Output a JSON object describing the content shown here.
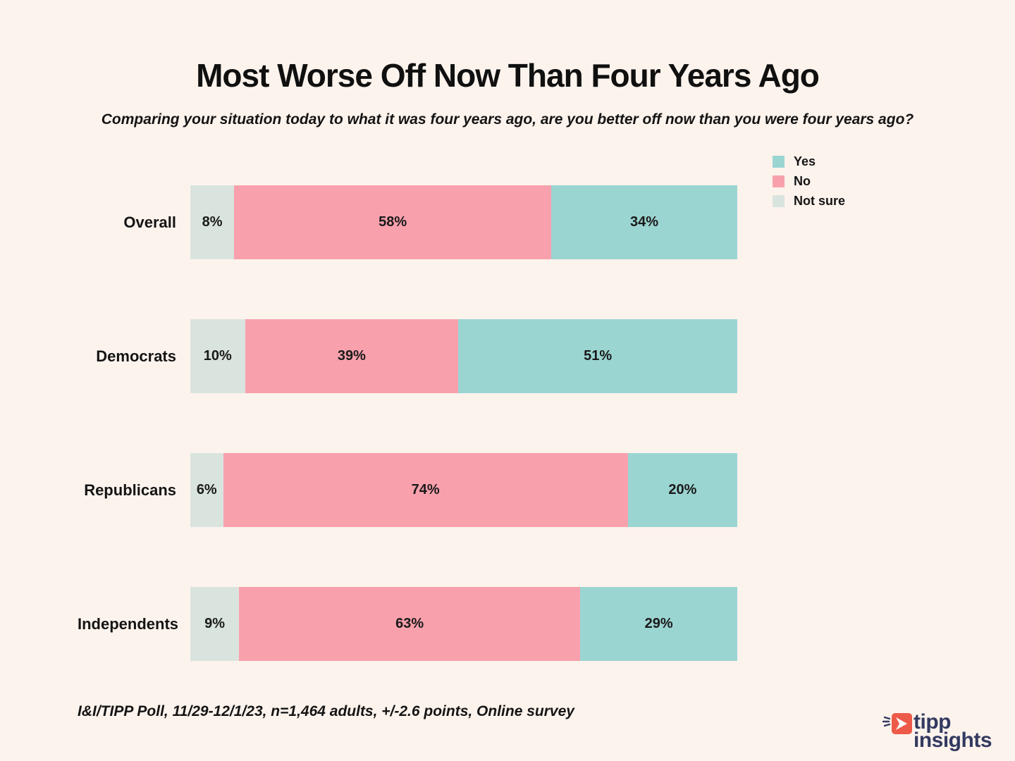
{
  "title": "Most Worse Off Now Than Four Years Ago",
  "subtitle": "Comparing your situation today to what it was four years ago, are you better off now than you were four years ago?",
  "footnote": "I&I/TIPP Poll, 11/29-12/1/23, n=1,464 adults, +/-2.6 points, Online survey",
  "colors": {
    "background": "#fdf3ed",
    "yes": "#9bd5d2",
    "no": "#f8a1ad",
    "not_sure": "#dae4de",
    "text": "#141414",
    "logo_navy": "#333a60",
    "logo_coral": "#ee5a4a"
  },
  "logo": {
    "line1": "tipp",
    "line2": "insights"
  },
  "chart_data": {
    "type": "bar",
    "orientation": "horizontal",
    "stacked": true,
    "grid": false,
    "xlim": [
      0,
      100
    ],
    "value_suffix": "%",
    "legend_position": "top-right",
    "title": "Most Worse Off Now Than Four Years Ago",
    "categories": [
      "Overall",
      "Democrats",
      "Republicans",
      "Independents"
    ],
    "segment_order": [
      "Not sure",
      "No",
      "Yes"
    ],
    "series": [
      {
        "name": "Yes",
        "color": "#9bd5d2",
        "values": [
          34,
          51,
          20,
          29
        ]
      },
      {
        "name": "No",
        "color": "#f8a1ad",
        "values": [
          58,
          39,
          74,
          63
        ]
      },
      {
        "name": "Not sure",
        "color": "#dae4de",
        "values": [
          8,
          10,
          6,
          9
        ]
      }
    ]
  }
}
